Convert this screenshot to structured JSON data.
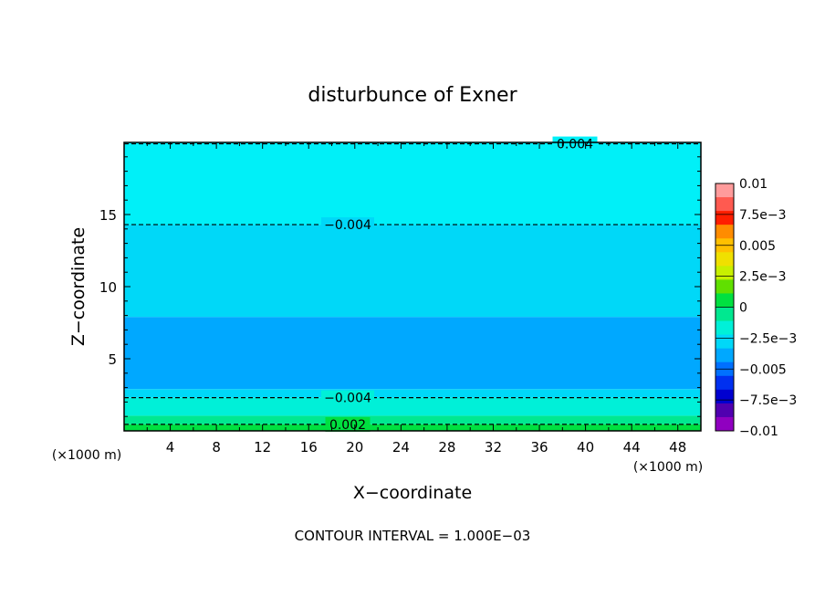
{
  "chart_data": {
    "type": "heatmap",
    "title": "disturbunce of Exner",
    "xlabel": "X−coordinate",
    "ylabel": "Z−coordinate",
    "xlim": [
      0,
      50
    ],
    "ylim": [
      0,
      20
    ],
    "x_ticks": [
      "4",
      "8",
      "12",
      "16",
      "20",
      "24",
      "28",
      "32",
      "36",
      "40",
      "44",
      "48"
    ],
    "y_ticks": [
      "5",
      "10",
      "15"
    ],
    "x_unit_left": "(×1000 m)",
    "x_unit_right": "(×1000 m)",
    "footer": "CONTOUR INTERVAL = 1.000E−03",
    "colorbar": {
      "labels": [
        "0.01",
        "7.5e−3",
        "0.005",
        "2.5e−3",
        "0",
        "−2.5e−3",
        "−0.005",
        "−7.5e−3",
        "−0.01"
      ],
      "colors_top_to_bottom": [
        "#ff9b9b",
        "#ff5a50",
        "#ff1e00",
        "#ff8c00",
        "#ffc000",
        "#f0e000",
        "#c8f000",
        "#60e000",
        "#00e040",
        "#00e890",
        "#00f0d8",
        "#00d8f8",
        "#00a8ff",
        "#0070ff",
        "#0030f0",
        "#0000d0",
        "#5000b0",
        "#9000c0"
      ]
    },
    "filled_bands": [
      {
        "from_z": 0.0,
        "to_z": 0.45,
        "color": "#00e040"
      },
      {
        "from_z": 0.45,
        "to_z": 1.05,
        "color": "#00e890"
      },
      {
        "from_z": 1.05,
        "to_z": 2.3,
        "color": "#00f0d8"
      },
      {
        "from_z": 2.3,
        "to_z": 2.9,
        "color": "#00d8f8"
      },
      {
        "from_z": 2.9,
        "to_z": 7.9,
        "color": "#00a8ff"
      },
      {
        "from_z": 7.9,
        "to_z": 14.3,
        "color": "#00d8f8"
      },
      {
        "from_z": 14.3,
        "to_z": 20.0,
        "color": "#00f0f8"
      }
    ],
    "contours": [
      {
        "level": "−0.004",
        "z": 14.3
      },
      {
        "level": "0.004",
        "z": 19.9
      },
      {
        "level": "−0.004",
        "z": 2.3
      },
      {
        "level": "0.002",
        "z": 0.45
      }
    ]
  }
}
